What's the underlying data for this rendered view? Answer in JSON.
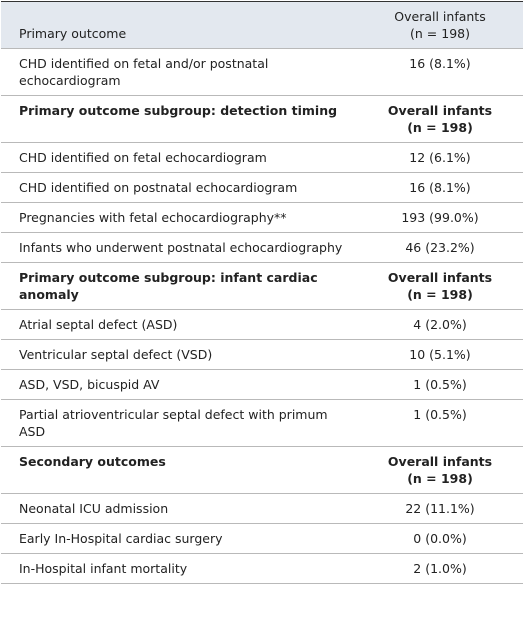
{
  "table": {
    "header": [
      "Primary outcome",
      "Overall infants",
      "(n = 198)"
    ],
    "rows": [
      [
        "CHD identified on fetal and/or postnatal echocardiogram",
        "16 (8.1%)"
      ]
    ],
    "sections": [
      {
        "title": "Primary outcome subgroup: detection timing",
        "column": "Overall infants",
        "n": "(n = 198)",
        "rows": [
          [
            "CHD identified on fetal echocardiogram",
            "12 (6.1%)"
          ],
          [
            "CHD identified on postnatal echocardiogram",
            "16 (8.1%)"
          ],
          [
            "Pregnancies with fetal echocardiography**",
            "193 (99.0%)"
          ],
          [
            "Infants who underwent postnatal echocardiography",
            "46 (23.2%)"
          ]
        ]
      },
      {
        "title": "Primary outcome subgroup: infant cardiac anomaly",
        "column": "Overall infants",
        "n": "(n = 198)",
        "rows": [
          [
            "Atrial septal defect (ASD)",
            "4 (2.0%)"
          ],
          [
            "Ventricular septal defect (VSD)",
            "10 (5.1%)"
          ],
          [
            "ASD, VSD, bicuspid AV",
            "1 (0.5%)"
          ],
          [
            "Partial atrioventricular septal defect with primum ASD",
            "1 (0.5%)"
          ]
        ]
      },
      {
        "title": "Secondary outcomes",
        "column": "Overall infants",
        "n": "(n = 198)",
        "rows": [
          [
            "Neonatal ICU admission",
            "22 (11.1%)"
          ],
          [
            "Early In-Hospital cardiac surgery",
            "0 (0.0%)"
          ],
          [
            "In-Hospital infant mortality",
            "2 (1.0%)"
          ]
        ]
      }
    ]
  }
}
